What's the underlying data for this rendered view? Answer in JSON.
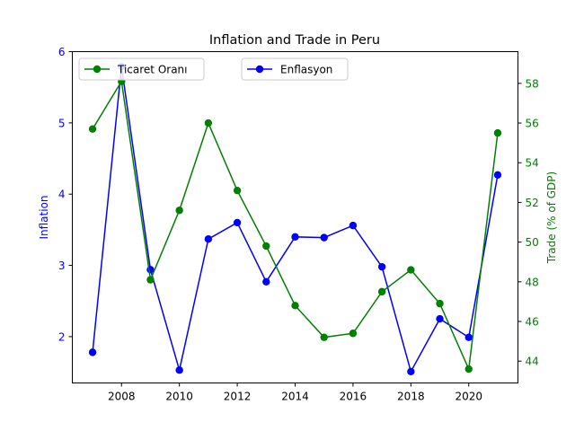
{
  "chart_data": {
    "type": "line",
    "title": "Inflation and Trade in Peru",
    "xlabel": "",
    "x": [
      2007,
      2008,
      2009,
      2010,
      2011,
      2012,
      2013,
      2014,
      2015,
      2016,
      2017,
      2018,
      2019,
      2020,
      2021
    ],
    "xlim": [
      2006.3,
      2021.7
    ],
    "xticks": [
      2008,
      2010,
      2012,
      2014,
      2016,
      2018,
      2020
    ],
    "left_axis": {
      "label": "Inflation",
      "color": "#0000ff",
      "ylim": [
        1.35,
        6.0
      ],
      "ticks": [
        2,
        3,
        4,
        5,
        6
      ]
    },
    "right_axis": {
      "label": "Trade (% of GDP)",
      "color": "#008000",
      "ylim": [
        42.9,
        59.6
      ],
      "ticks": [
        44,
        46,
        48,
        50,
        52,
        54,
        56,
        58
      ]
    },
    "series": [
      {
        "name": "Enflasyon",
        "axis": "left",
        "color": "#0000ff",
        "values": [
          1.78,
          5.79,
          2.94,
          1.53,
          3.37,
          3.6,
          2.77,
          3.4,
          3.39,
          3.56,
          2.98,
          1.51,
          2.25,
          1.99,
          4.27
        ]
      },
      {
        "name": "Ticaret Oranı",
        "axis": "right",
        "color": "#008000",
        "values": [
          55.7,
          58.1,
          48.1,
          51.6,
          56.0,
          52.6,
          49.8,
          46.8,
          45.2,
          45.4,
          47.5,
          48.6,
          46.9,
          43.6,
          55.5
        ]
      }
    ],
    "legend": [
      {
        "series": "Ticaret Oranı",
        "placement": "upper-left"
      },
      {
        "series": "Enflasyon",
        "placement": "upper-center"
      }
    ]
  }
}
